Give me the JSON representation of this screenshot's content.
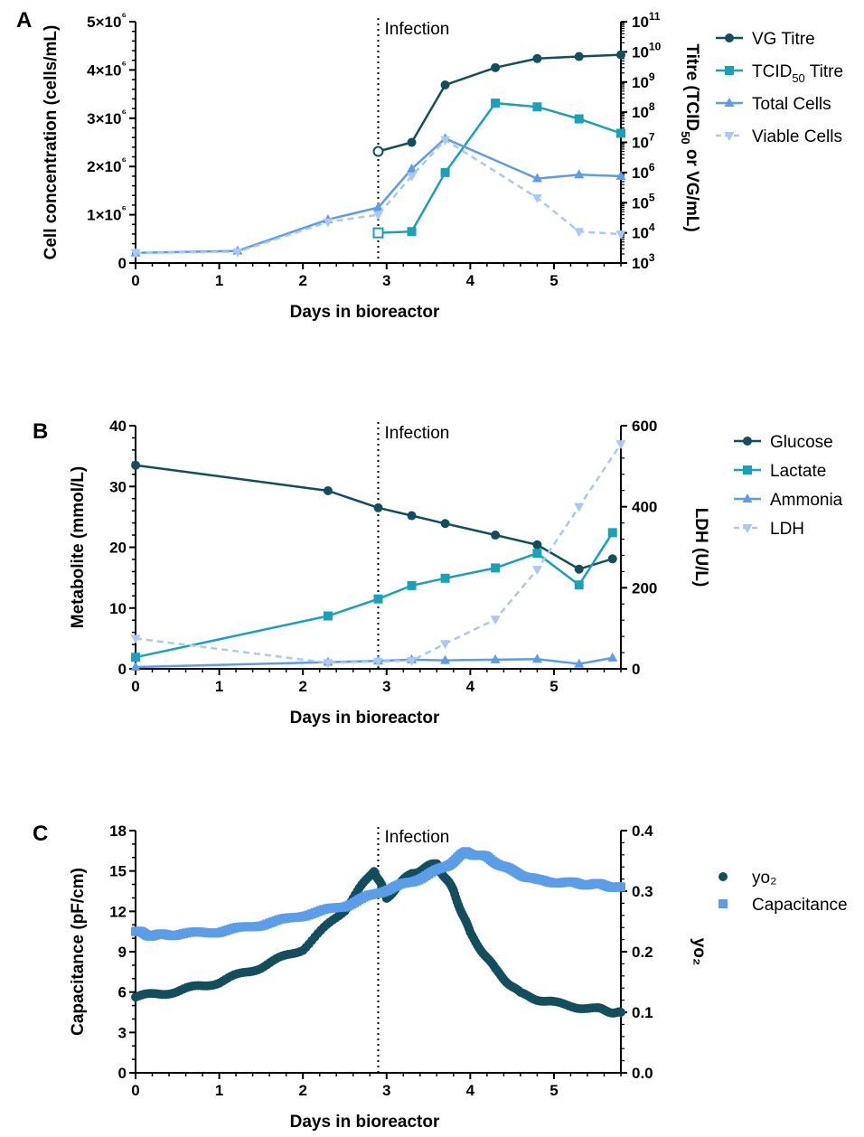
{
  "chart_data": [
    {
      "panel": "A",
      "type": "line",
      "xlabel": "Days in bioreactor",
      "ylabel": "Cell concentration (cells/mL)",
      "y2label": "Titre (TCID50 or VG/mL)",
      "xlim": [
        0,
        5.8
      ],
      "ylim": [
        0,
        5000000
      ],
      "y2lim": [
        1000,
        100000000000
      ],
      "y2scale": "log",
      "xticks": [
        "0",
        "1",
        "2",
        "3",
        "4",
        "5"
      ],
      "yticks": [
        "0",
        "1×10⁶",
        "2×10⁶",
        "3×10⁶",
        "4×10⁶",
        "5×10⁶"
      ],
      "y2ticks": [
        "10³",
        "10⁴",
        "10⁵",
        "10⁶",
        "10⁷",
        "10⁸",
        "10⁹",
        "10¹⁰",
        "10¹¹"
      ],
      "annotation": {
        "text": "Infection",
        "x": 2.9
      },
      "legend_position": "right",
      "series": [
        {
          "name": "VG Titre",
          "axis": "right",
          "marker": "circle",
          "style": "solid",
          "color": "#134e5e",
          "x": [
            2.9,
            3.3,
            3.7,
            4.3,
            4.8,
            5.3,
            5.8
          ],
          "y": [
            5000000,
            10000000,
            800000000,
            3000000000,
            6000000000,
            7000000000,
            8000000000
          ],
          "open_first": true
        },
        {
          "name": "TCID50 Titre",
          "axis": "right",
          "marker": "square",
          "style": "solid",
          "color": "#1aa0b8",
          "x": [
            2.9,
            3.3,
            3.7,
            4.3,
            4.8,
            5.3,
            5.8
          ],
          "y": [
            10000,
            11000,
            1000000,
            200000000,
            150000000,
            60000000,
            20000000
          ],
          "open_first": true
        },
        {
          "name": "Total Cells",
          "axis": "left",
          "marker": "triangle-up",
          "style": "solid",
          "color": "#5b9de8",
          "x": [
            0,
            1.22,
            2.3,
            2.9,
            3.3,
            3.7,
            4.8,
            5.3,
            5.8
          ],
          "y": [
            210000,
            250000,
            900000,
            1150000,
            1950000,
            2580000,
            1750000,
            1830000,
            1800000
          ]
        },
        {
          "name": "Viable Cells",
          "axis": "left",
          "marker": "triangle-down",
          "style": "dashed",
          "color": "#a9c8f2",
          "x": [
            0,
            1.22,
            2.3,
            2.9,
            3.3,
            3.7,
            4.8,
            5.3,
            5.8
          ],
          "y": [
            210000,
            230000,
            850000,
            1000000,
            1800000,
            2550000,
            1350000,
            650000,
            600000
          ]
        }
      ]
    },
    {
      "panel": "B",
      "type": "line",
      "xlabel": "Days in bioreactor",
      "ylabel": "Metabolite (mmol/L)",
      "y2label": "LDH (U/L)",
      "xlim": [
        0,
        5.8
      ],
      "ylim": [
        0,
        40
      ],
      "y2lim": [
        0,
        600
      ],
      "xticks": [
        "0",
        "1",
        "2",
        "3",
        "4",
        "5"
      ],
      "yticks": [
        "0",
        "10",
        "20",
        "30",
        "40"
      ],
      "y2ticks": [
        "0",
        "200",
        "400",
        "600"
      ],
      "annotation": {
        "text": "Infection",
        "x": 2.9
      },
      "legend_position": "right",
      "series": [
        {
          "name": "Glucose",
          "axis": "left",
          "marker": "circle",
          "style": "solid",
          "color": "#134e5e",
          "x": [
            0,
            2.3,
            2.9,
            3.3,
            3.7,
            4.3,
            4.8,
            5.3,
            5.7
          ],
          "y": [
            33.5,
            29.3,
            26.5,
            25.2,
            23.9,
            22.0,
            20.4,
            16.4,
            18.1
          ]
        },
        {
          "name": "Lactate",
          "axis": "left",
          "marker": "square",
          "style": "solid",
          "color": "#1aa0b8",
          "x": [
            0,
            2.3,
            2.9,
            3.3,
            3.7,
            4.3,
            4.8,
            5.3,
            5.7
          ],
          "y": [
            1.9,
            8.7,
            11.5,
            13.7,
            14.9,
            16.6,
            19.0,
            13.8,
            22.4
          ]
        },
        {
          "name": "Ammonia",
          "axis": "left",
          "marker": "triangle-up",
          "style": "solid",
          "color": "#5b9de8",
          "x": [
            0,
            2.3,
            2.9,
            3.3,
            3.7,
            4.3,
            4.8,
            5.3,
            5.7
          ],
          "y": [
            0.3,
            1.1,
            1.3,
            1.5,
            1.4,
            1.5,
            1.6,
            0.8,
            1.8
          ]
        },
        {
          "name": "LDH",
          "axis": "right",
          "marker": "triangle-down",
          "style": "dashed",
          "color": "#a9c8f2",
          "x": [
            0,
            2.3,
            2.9,
            3.3,
            3.7,
            4.3,
            4.8,
            5.3,
            5.8
          ],
          "y": [
            75,
            15,
            18,
            20,
            62,
            122,
            245,
            400,
            555
          ]
        }
      ]
    },
    {
      "panel": "C",
      "type": "scatter",
      "xlabel": "Days in bioreactor",
      "ylabel": "Capacitance (pF/cm)",
      "y2label": "yo₂",
      "xlim": [
        0,
        5.8
      ],
      "ylim": [
        0,
        18
      ],
      "y2lim": [
        0,
        0.4
      ],
      "xticks": [
        "0",
        "1",
        "2",
        "3",
        "4",
        "5"
      ],
      "yticks": [
        "0",
        "3",
        "6",
        "9",
        "12",
        "15",
        "18"
      ],
      "y2ticks": [
        "0.0",
        "0.1",
        "0.2",
        "0.3",
        "0.4"
      ],
      "annotation": {
        "text": "Infection",
        "x": 2.9
      },
      "legend_position": "right",
      "series": [
        {
          "name": "yo₂",
          "axis": "right",
          "marker": "circle",
          "color": "#134e5e",
          "x": [
            0,
            0.5,
            1,
            1.5,
            2,
            2.5,
            2.85,
            3.0,
            3.3,
            3.6,
            3.8,
            4.0,
            4.3,
            4.6,
            5.0,
            5.5,
            5.8
          ],
          "y": [
            0.125,
            0.135,
            0.15,
            0.175,
            0.205,
            0.27,
            0.335,
            0.29,
            0.33,
            0.345,
            0.3,
            0.23,
            0.17,
            0.13,
            0.115,
            0.105,
            0.1
          ]
        },
        {
          "name": "Capacitance",
          "axis": "left",
          "marker": "square",
          "color": "#5b9de8",
          "x": [
            0,
            0.2,
            0.5,
            1,
            1.5,
            2,
            2.5,
            2.9,
            3.3,
            3.7,
            3.95,
            4.2,
            4.5,
            4.8,
            5.2,
            5.5,
            5.8
          ],
          "y": [
            10.5,
            10.2,
            10.3,
            10.5,
            11.0,
            11.7,
            12.4,
            13.4,
            14.2,
            15.3,
            16.4,
            16.0,
            15.0,
            14.3,
            14.1,
            14.0,
            13.8
          ]
        }
      ]
    }
  ]
}
